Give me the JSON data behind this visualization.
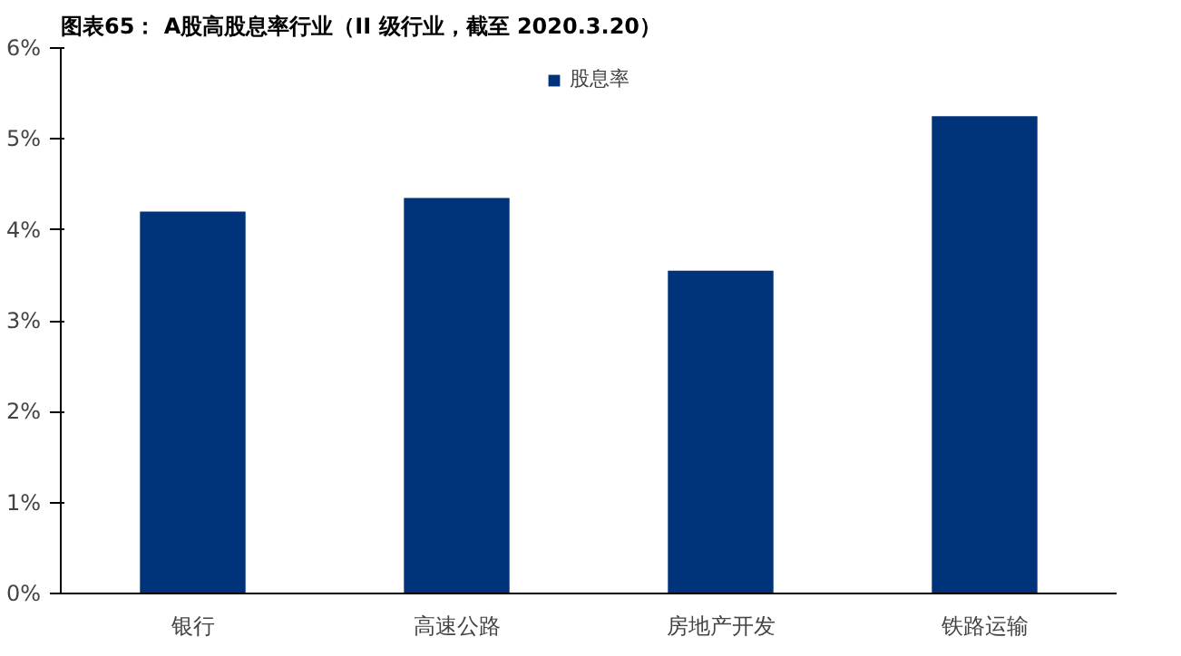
{
  "chart_data": {
    "type": "bar",
    "title": "图表65： A股高股息率行业（II 级行业，截至 2020.3.20）",
    "categories": [
      "银行",
      "高速公路",
      "房地产开发",
      "铁路运输"
    ],
    "series": [
      {
        "name": "股息率",
        "color": "#00337a",
        "values": [
          4.2,
          4.35,
          3.55,
          5.25
        ]
      }
    ],
    "ylim": [
      0,
      6
    ],
    "yticks": [
      {
        "value": 0,
        "label": "0%"
      },
      {
        "value": 1,
        "label": "1%"
      },
      {
        "value": 2,
        "label": "2%"
      },
      {
        "value": 3,
        "label": "3%"
      },
      {
        "value": 4,
        "label": "4%"
      },
      {
        "value": 5,
        "label": "5%"
      },
      {
        "value": 6,
        "label": "6%"
      }
    ],
    "grid": false,
    "legend": "top"
  }
}
